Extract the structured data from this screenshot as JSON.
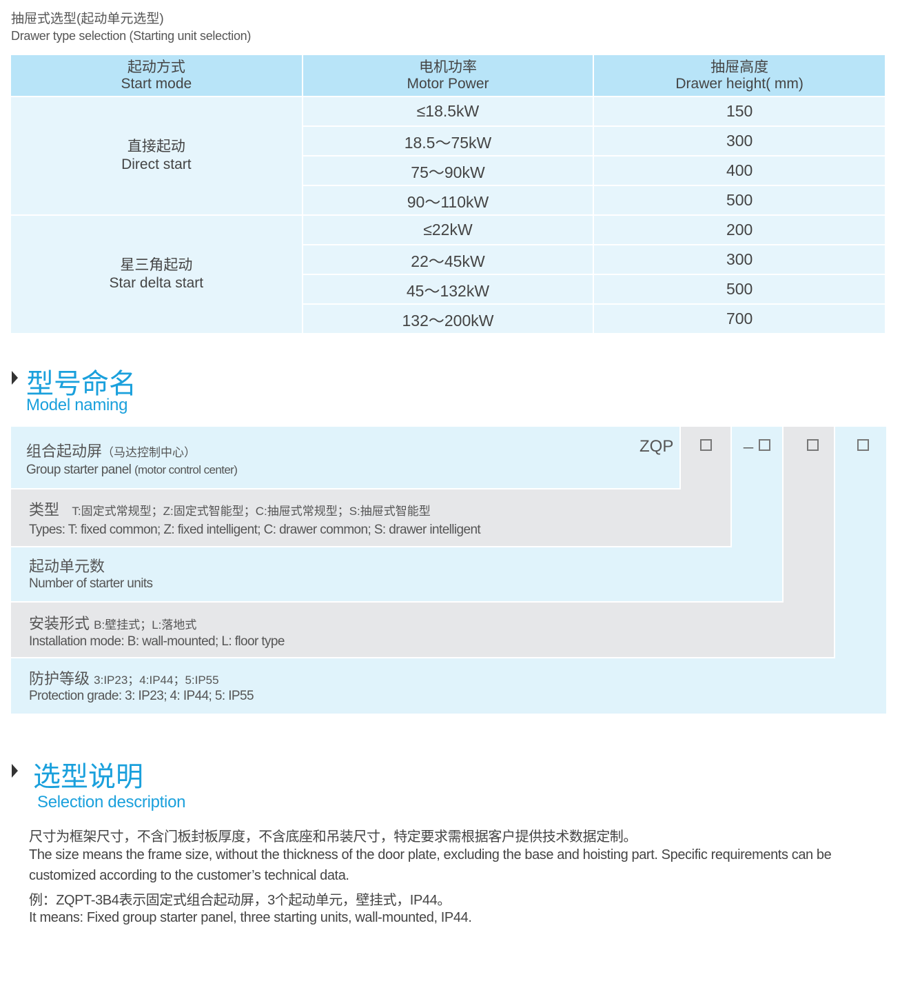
{
  "header": {
    "title_cn": "抽屉式选型(起动单元选型)",
    "title_en": "Drawer type selection (Starting unit selection)"
  },
  "table": {
    "columns": [
      {
        "cn": "起动方式",
        "en": "Start mode"
      },
      {
        "cn": "电机功率",
        "en": "Motor Power"
      },
      {
        "cn": "抽屉高度",
        "en": "Drawer height( mm)"
      }
    ],
    "groups": [
      {
        "cn": "直接起动",
        "en": "Direct start",
        "rows": [
          [
            "≤18.5kW",
            "150"
          ],
          [
            "18.5～75kW",
            "300"
          ],
          [
            "75～90kW",
            "400"
          ],
          [
            "90～110kW",
            "500"
          ]
        ]
      },
      {
        "cn": "星三角起动",
        "en": "Star delta start",
        "rows": [
          [
            "≤22kW",
            "200"
          ],
          [
            "22～45kW",
            "300"
          ],
          [
            "45～132kW",
            "500"
          ],
          [
            "132～200kW",
            "700"
          ]
        ]
      }
    ]
  },
  "model": {
    "title_cn": "型号命名",
    "title_en": "Model naming",
    "prefix": "ZQP",
    "dash": "－",
    "items": [
      {
        "cn": "组合起动屏",
        "cn_note": "（马达控制中心）",
        "en": "Group starter panel",
        "en_note": "(motor control center)"
      },
      {
        "cn": "类型",
        "cn_note": "T:固定式常规型；Z:固定式智能型；C:抽屉式常规型；S:抽屉式智能型",
        "en": "Types: T: fixed common; Z: fixed intelligent; C: drawer common; S: drawer intelligent"
      },
      {
        "cn": "起动单元数",
        "en": "Number  of  starter units"
      },
      {
        "cn": "安装形式",
        "cn_note": "B:壁挂式；L:落地式",
        "en": "Installation mode: B: wall-mounted; L: floor type"
      },
      {
        "cn": "防护等级",
        "cn_note": "3:IP23；4:IP44；5:IP55",
        "en": "Protection grade:  3: IP23; 4: IP44; 5: IP55"
      }
    ]
  },
  "selection": {
    "title_cn": "选型说明",
    "title_en": "Selection description",
    "lines": [
      "尺寸为框架尺寸，不含门板封板厚度，不含底座和吊装尺寸，特定要求需根据客户提供技术数据定制。",
      "The size means the frame size, without the thickness of the door plate, excluding the base and hoisting part. Specific requirements can be",
      "customized according to the customer’s technical data.",
      "例：ZQPT-3B4表示固定式组合起动屏，3个起动单元，壁挂式，IP44。",
      "It means: Fixed group starter panel, three starting units, wall-mounted, IP44."
    ]
  },
  "colors": {
    "accent": "#1aa0dc",
    "header_bg": "#b8e4f8",
    "row_bg": "#e6f5fc",
    "panel_blue": "#e0f3fb",
    "panel_gray": "#e6e7e9"
  }
}
